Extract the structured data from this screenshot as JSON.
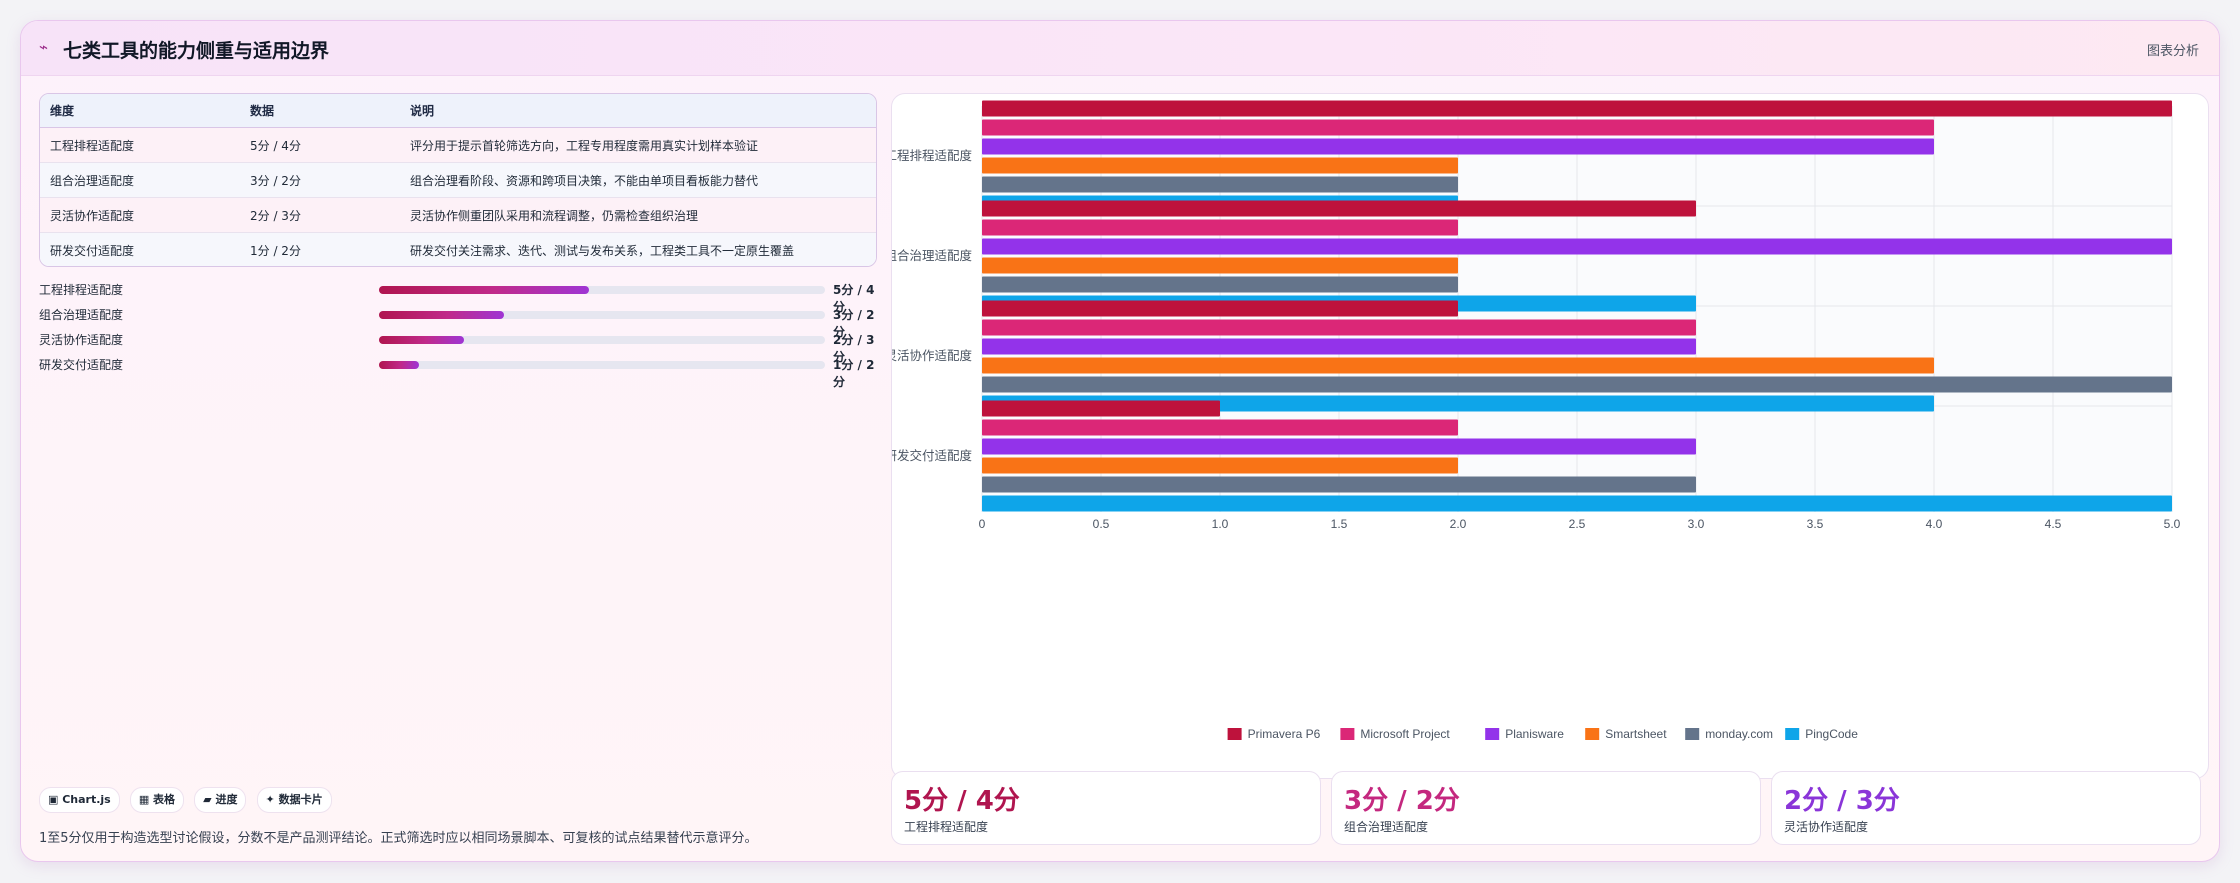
{
  "header": {
    "icon": "chart-trend-icon",
    "title": "七类工具的能力侧重与适用边界",
    "link": "图表分析"
  },
  "table": {
    "headers": [
      "维度",
      "数据",
      "说明"
    ],
    "rows": [
      [
        "工程排程适配度",
        "5分 / 4分",
        "评分用于提示首轮筛选方向，工程专用程度需用真实计划样本验证"
      ],
      [
        "组合治理适配度",
        "3分 / 2分",
        "组合治理看阶段、资源和跨项目决策，不能由单项目看板能力替代"
      ],
      [
        "灵活协作适配度",
        "2分 / 3分",
        "灵活协作侧重团队采用和流程调整，仍需检查组织治理"
      ],
      [
        "研发交付适配度",
        "1分 / 2分",
        "研发交付关注需求、迭代、测试与发布关系，工程类工具不一定原生覆盖"
      ]
    ]
  },
  "progress": [
    {
      "label": "工程排程适配度",
      "value": "5分 / 4分",
      "fill": 0.47
    },
    {
      "label": "组合治理适配度",
      "value": "3分 / 2分",
      "fill": 0.28
    },
    {
      "label": "灵活协作适配度",
      "value": "2分 / 3分",
      "fill": 0.19
    },
    {
      "label": "研发交付适配度",
      "value": "1分 / 2分",
      "fill": 0.09
    }
  ],
  "chips": [
    "▣ Chart.js",
    "▦ 表格",
    "▰ 进度",
    "✦ 数据卡片"
  ],
  "note": "1至5分仅用于构造选型讨论假设，分数不是产品测评结论。正式筛选时应以相同场景脚本、可复核的试点结果替代示意评分。",
  "stats": [
    {
      "value": "5分 / 4分",
      "label": "工程排程适配度",
      "color": "#b0154f"
    },
    {
      "value": "3分 / 2分",
      "label": "组合治理适配度",
      "color": "#c4287f"
    },
    {
      "value": "2分 / 3分",
      "label": "灵活协作适配度",
      "color": "#8a35d8"
    }
  ],
  "chart_data": {
    "type": "bar",
    "orientation": "horizontal",
    "categories": [
      "工程排程适配度",
      "组合治理适配度",
      "灵活协作适配度",
      "研发交付适配度"
    ],
    "series": [
      {
        "name": "Primavera P6",
        "color": "#be123c",
        "values": [
          5,
          3,
          2,
          1
        ]
      },
      {
        "name": "Microsoft Project",
        "color": "#db2777",
        "values": [
          4,
          2,
          3,
          2
        ]
      },
      {
        "name": "Planisware",
        "color": "#9333ea",
        "values": [
          4,
          5,
          3,
          3
        ]
      },
      {
        "name": "Smartsheet",
        "color": "#f97316",
        "values": [
          2,
          2,
          4,
          2
        ]
      },
      {
        "name": "monday.com",
        "color": "#64748b",
        "values": [
          2,
          2,
          5,
          3
        ]
      },
      {
        "name": "PingCode",
        "color": "#0ea5e9",
        "values": [
          2,
          3,
          4,
          5
        ]
      }
    ],
    "xlim": [
      0,
      5
    ],
    "xticks": [
      "0",
      "0.5",
      "1.0",
      "1.5",
      "2.0",
      "2.5",
      "3.0",
      "3.5",
      "4.0",
      "4.5",
      "5.0"
    ],
    "grid": true,
    "legend": "bottom"
  }
}
